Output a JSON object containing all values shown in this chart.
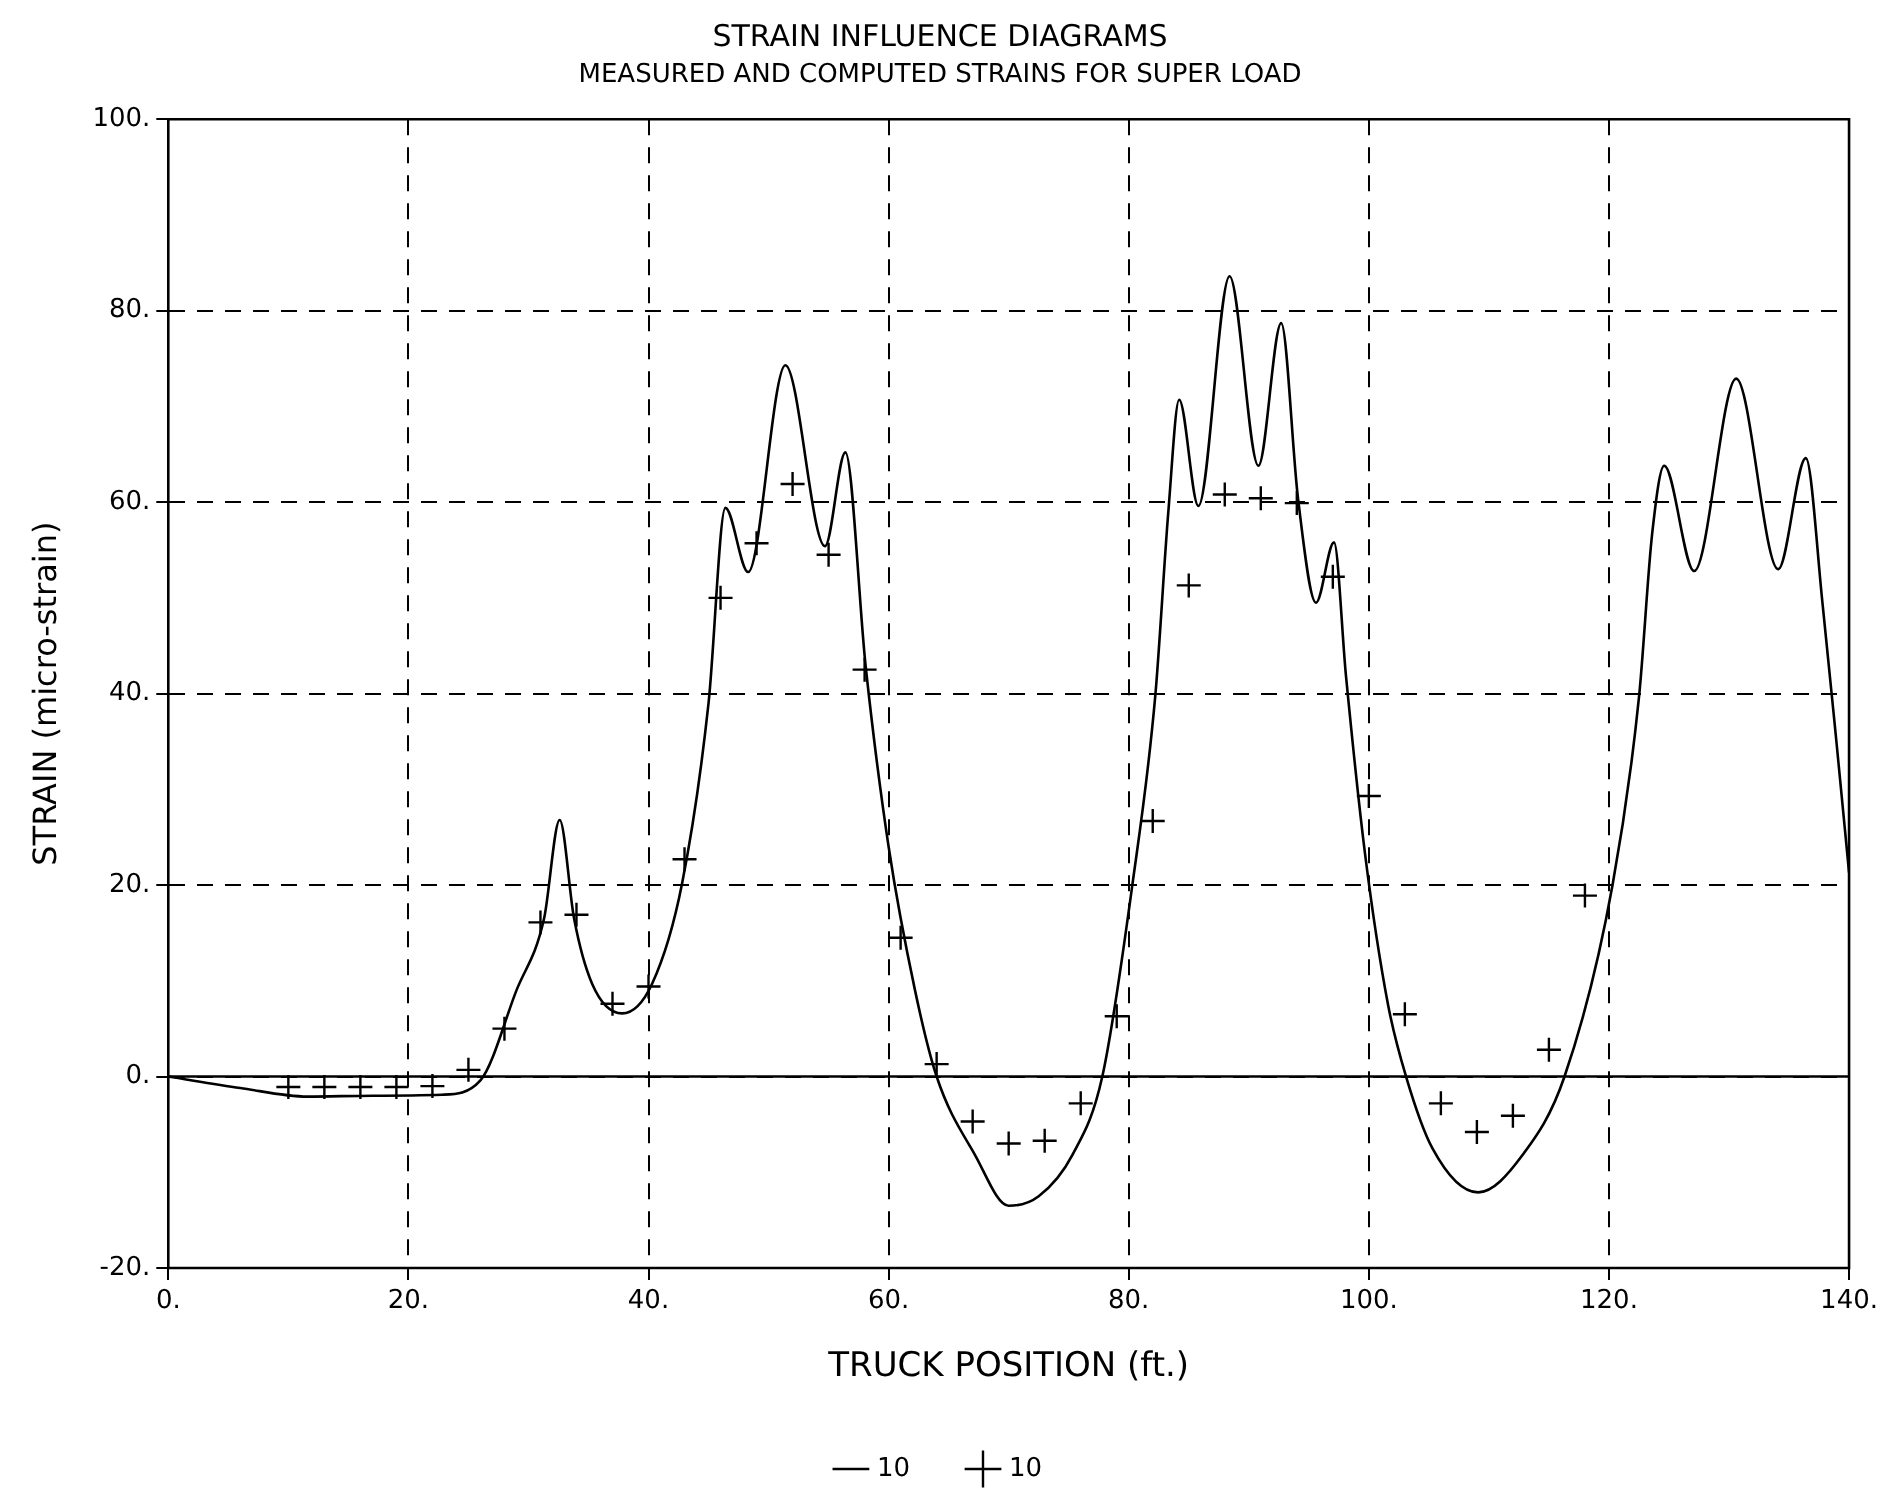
{
  "chart_data": {
    "type": "line",
    "title": "STRAIN INFLUENCE DIAGRAMS",
    "subtitle": "MEASURED AND COMPUTED STRAINS FOR SUPER LOAD",
    "xlabel": "TRUCK POSITION (ft.)",
    "ylabel": "STRAIN (micro-strain)",
    "xlim": [
      0,
      140
    ],
    "ylim": [
      -20,
      100
    ],
    "xticks": [
      {
        "value": 0,
        "label": "0."
      },
      {
        "value": 20,
        "label": "20."
      },
      {
        "value": 40,
        "label": "40."
      },
      {
        "value": 60,
        "label": "60."
      },
      {
        "value": 80,
        "label": "80."
      },
      {
        "value": 100,
        "label": "100."
      },
      {
        "value": 120,
        "label": "120."
      },
      {
        "value": 140,
        "label": "140."
      }
    ],
    "yticks": [
      {
        "value": -20,
        "label": "-20."
      },
      {
        "value": 0,
        "label": "0."
      },
      {
        "value": 20,
        "label": "20."
      },
      {
        "value": 40,
        "label": "40."
      },
      {
        "value": 60,
        "label": "60."
      },
      {
        "value": 80,
        "label": "80."
      },
      {
        "value": 100,
        "label": "100."
      }
    ],
    "grid": true,
    "legend": "bottom",
    "ref_lines": [
      {
        "axis": "y",
        "value": 0,
        "color": "#000000",
        "line_style": "solid"
      }
    ],
    "series": [
      {
        "name": "10",
        "color": "#000000",
        "marker": "none",
        "line_style": "solid",
        "x": [
          0,
          6,
          11.6,
          17,
          22.8,
          26,
          29,
          31.3,
          32.6,
          33.8,
          35.3,
          37.8,
          40.3,
          42.8,
          45,
          46.4,
          48.3,
          51.4,
          54.7,
          56.4,
          58.1,
          60,
          62.2,
          64,
          67.2,
          70,
          72.5,
          75.3,
          77.8,
          80.3,
          82.2,
          83.3,
          84.2,
          85.8,
          88.4,
          90.8,
          92.7,
          94.1,
          95.6,
          97.1,
          98.1,
          99.7,
          101.6,
          103.1,
          105.3,
          109.1,
          112.8,
          116.3,
          120.3,
          122.5,
          123.6,
          124.6,
          127.1,
          130.6,
          134.1,
          136.4,
          137.8,
          139,
          140
        ],
        "values": [
          0,
          -1.2,
          -2.1,
          -2,
          -1.9,
          -0.4,
          9,
          16.5,
          26.8,
          16.5,
          9.7,
          6.6,
          9.7,
          20.2,
          39,
          59.4,
          52.7,
          74.3,
          55.4,
          65.2,
          42.7,
          24,
          9,
          0,
          -8.2,
          -13.5,
          -12.5,
          -8.2,
          0,
          20,
          39.6,
          59,
          70.7,
          59.6,
          83.6,
          63.8,
          78.7,
          60.4,
          49.5,
          55.8,
          41.8,
          23.1,
          7.5,
          0,
          -7.5,
          -12.1,
          -8.2,
          0,
          20,
          39.6,
          56.7,
          63.8,
          52.8,
          72.9,
          53,
          64.6,
          49.3,
          34.3,
          21.3
        ]
      },
      {
        "name": "10",
        "type": "scatter",
        "color": "#000000",
        "marker": "cross",
        "x": [
          10,
          13,
          16,
          19,
          22,
          25,
          28,
          31,
          34,
          37,
          40,
          43,
          46,
          49,
          52,
          55,
          58,
          61,
          64,
          67,
          70,
          73,
          76,
          79,
          82,
          85,
          88,
          91,
          94,
          97,
          100,
          103,
          106,
          109,
          112,
          115,
          118
        ],
        "values": [
          -1.1,
          -1.1,
          -1.1,
          -1.1,
          -1,
          0.7,
          5,
          16.1,
          16.9,
          7.6,
          9.4,
          22.7,
          50,
          55.7,
          61.9,
          54.5,
          42.5,
          14.5,
          1.3,
          -4.7,
          -7,
          -6.7,
          -2.8,
          6.3,
          26.7,
          51.3,
          60.8,
          60.4,
          59.9,
          52.2,
          29.3,
          6.5,
          -2.8,
          -5.8,
          -4.1,
          2.8,
          18.9
        ]
      }
    ]
  }
}
